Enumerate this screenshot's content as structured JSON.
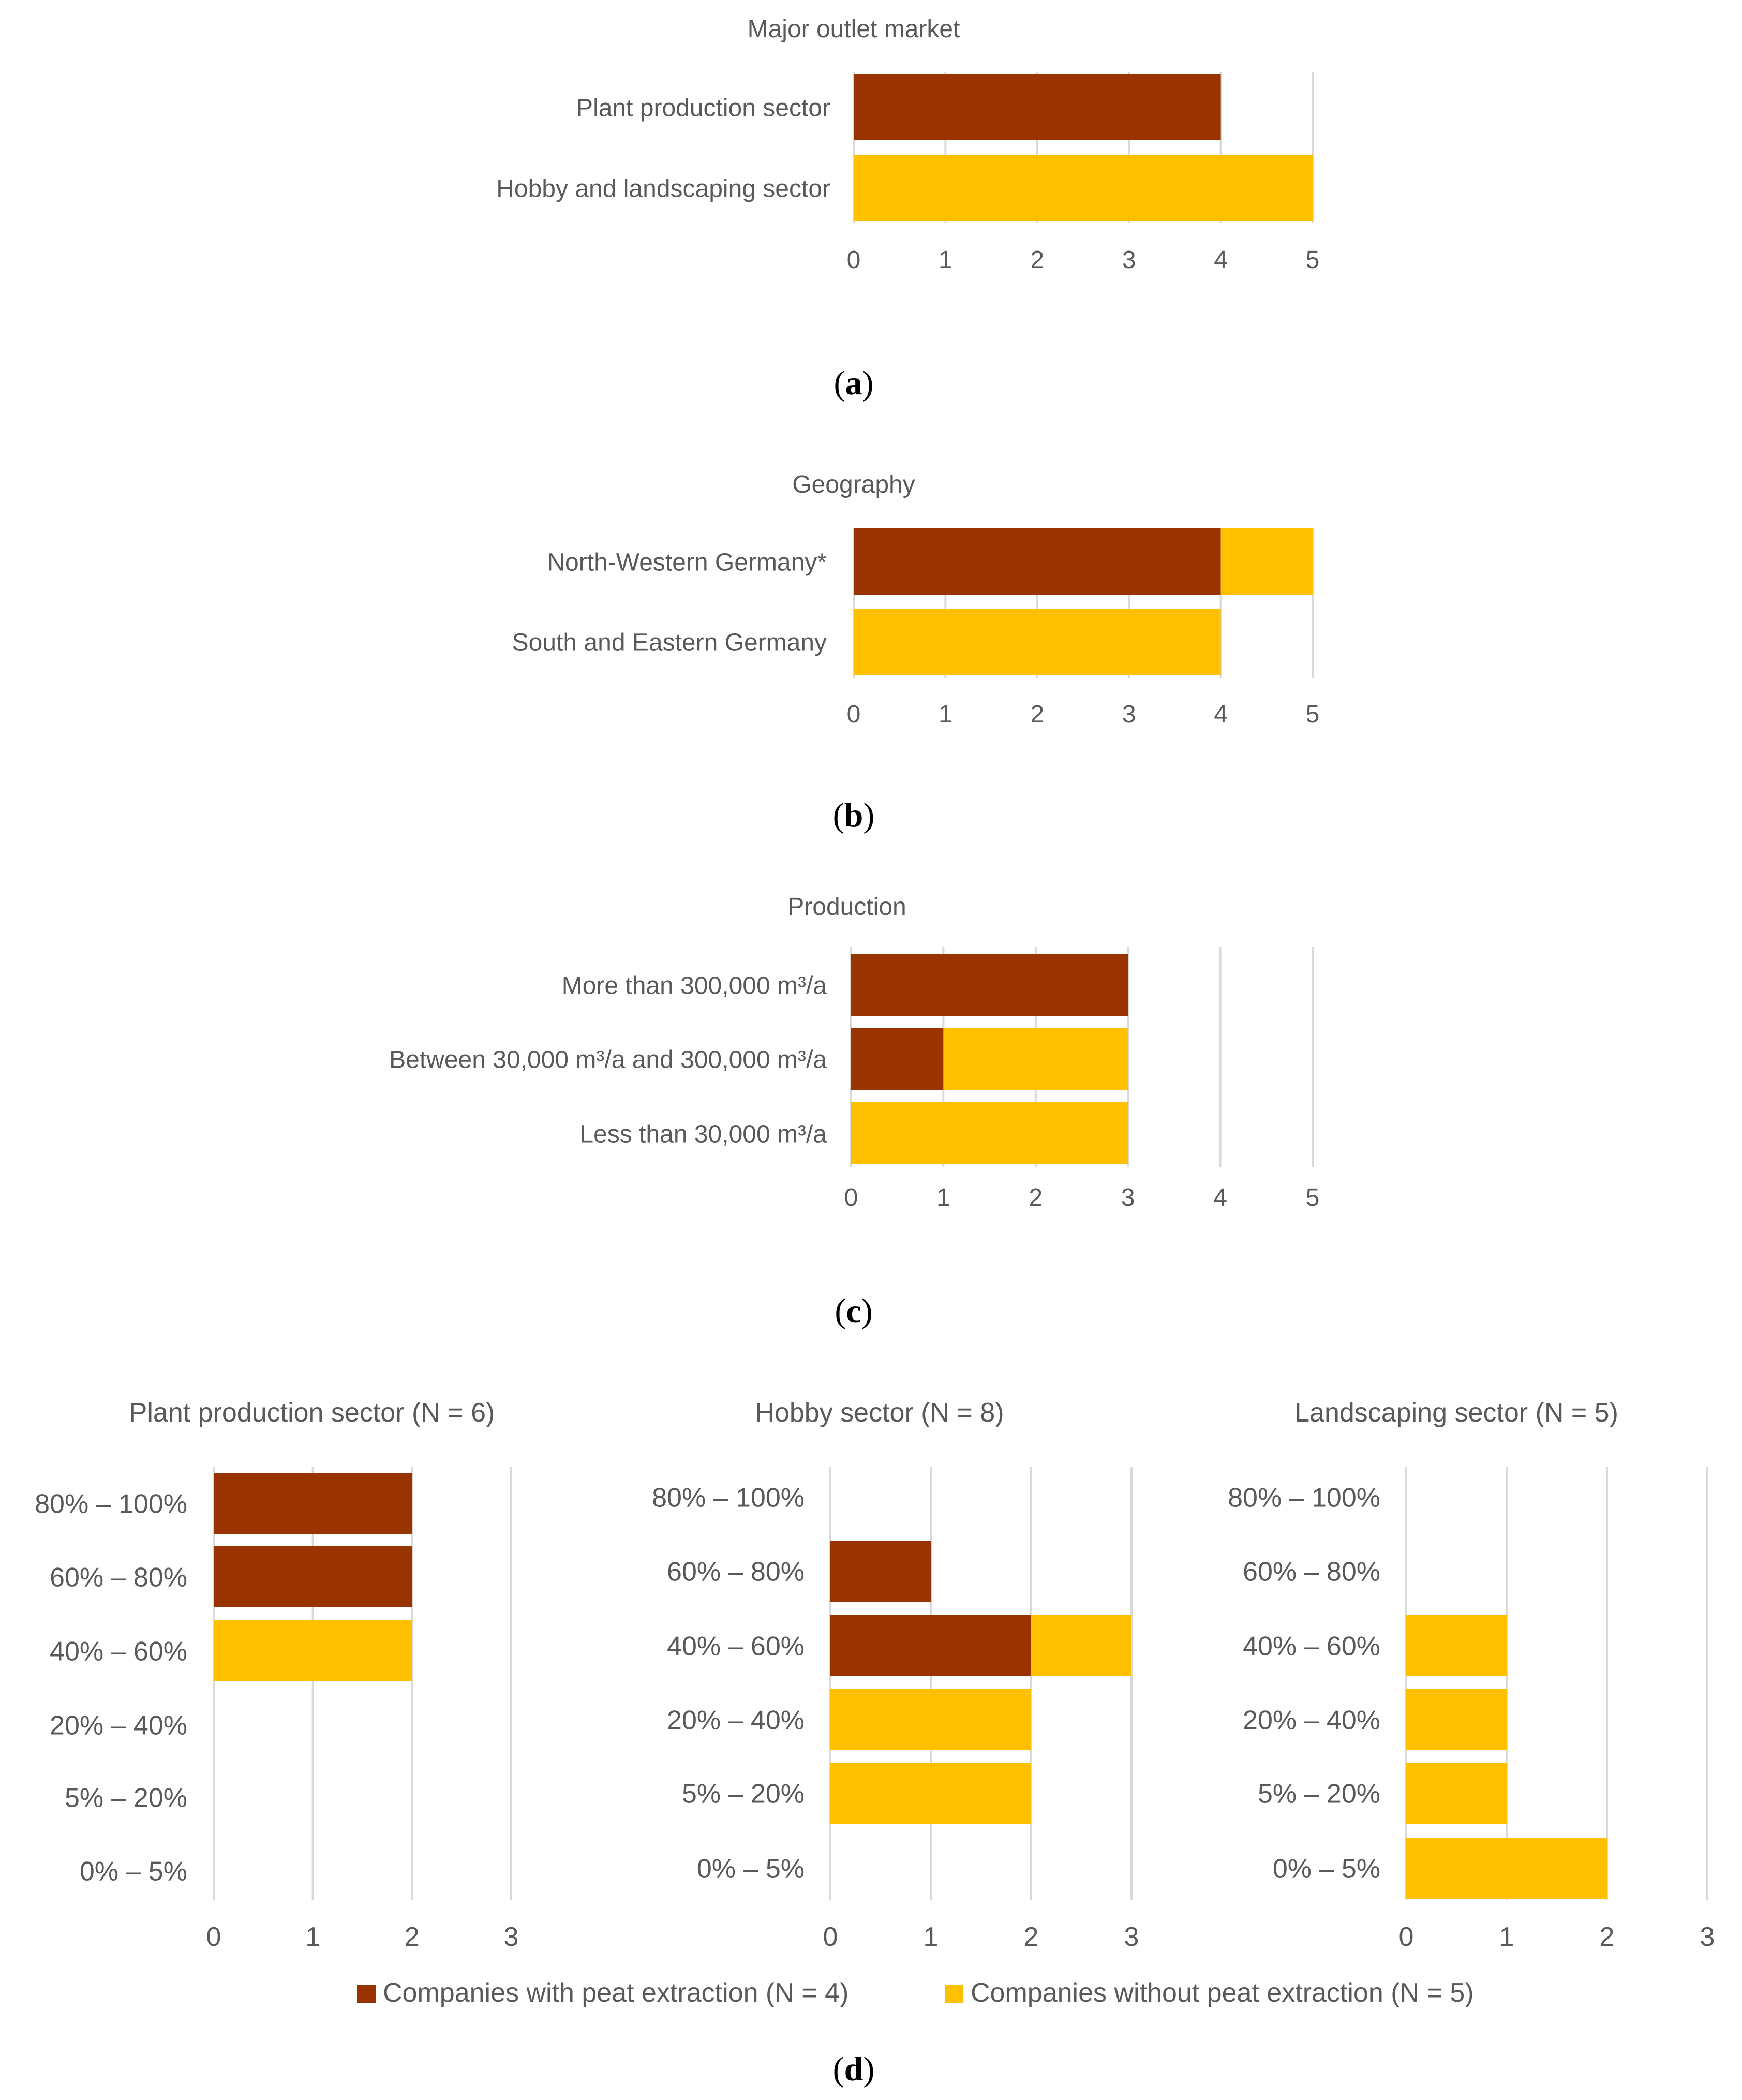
{
  "colors": {
    "with": "#993300",
    "without": "#FFC000",
    "grid": "#D9D9D9",
    "text": "#595959"
  },
  "panel_labels": [
    "a",
    "b",
    "c",
    "d"
  ],
  "legend": {
    "with": "Companies with peat extraction (N = 4)",
    "without": "Companies without peat extraction (N = 5)"
  },
  "chart_data": [
    {
      "type": "bar",
      "orientation": "horizontal",
      "stacked": true,
      "title": "Major outlet market",
      "categories": [
        "Plant production sector",
        "Hobby and landscaping sector"
      ],
      "series": [
        {
          "key": "with",
          "values": [
            4,
            0
          ]
        },
        {
          "key": "without",
          "values": [
            0,
            5
          ]
        }
      ],
      "xlim": [
        0,
        5
      ],
      "xticks": [
        "0",
        "1",
        "2",
        "3",
        "4",
        "5"
      ],
      "grid": true
    },
    {
      "type": "bar",
      "orientation": "horizontal",
      "stacked": true,
      "title": "Geography",
      "categories": [
        "North-Western Germany*",
        "South and Eastern Germany"
      ],
      "series": [
        {
          "key": "with",
          "values": [
            4,
            0
          ]
        },
        {
          "key": "without",
          "values": [
            1,
            4
          ]
        }
      ],
      "xlim": [
        0,
        5
      ],
      "xticks": [
        "0",
        "1",
        "2",
        "3",
        "4",
        "5"
      ],
      "grid": true
    },
    {
      "type": "bar",
      "orientation": "horizontal",
      "stacked": true,
      "title": "Production",
      "categories": [
        "More than 300,000 m³/a",
        "Between 30,000 m³/a and 300,000 m³/a",
        "Less than 30,000 m³/a"
      ],
      "series": [
        {
          "key": "with",
          "values": [
            3,
            1,
            0
          ]
        },
        {
          "key": "without",
          "values": [
            0,
            2,
            3
          ]
        }
      ],
      "xlim": [
        0,
        5
      ],
      "xticks": [
        "0",
        "1",
        "2",
        "3",
        "4",
        "5"
      ],
      "grid": true
    },
    {
      "type": "bar",
      "orientation": "horizontal",
      "stacked": true,
      "title": "Plant production sector (N = 6)",
      "categories": [
        "80% – 100%",
        "60% – 80%",
        "40% – 60%",
        "20% – 40%",
        "5% – 20%",
        "0% – 5%"
      ],
      "series": [
        {
          "key": "with",
          "values": [
            2,
            2,
            0,
            0,
            0,
            0
          ]
        },
        {
          "key": "without",
          "values": [
            0,
            0,
            2,
            0,
            0,
            0
          ]
        }
      ],
      "xlim": [
        0,
        3
      ],
      "xticks": [
        "0",
        "1",
        "2",
        "3"
      ],
      "grid": true
    },
    {
      "type": "bar",
      "orientation": "horizontal",
      "stacked": true,
      "title": "Hobby sector (N = 8)",
      "categories": [
        "80% – 100%",
        "60% – 80%",
        "40% – 60%",
        "20% – 40%",
        "5% – 20%",
        "0% – 5%"
      ],
      "series": [
        {
          "key": "with",
          "values": [
            0,
            1,
            2,
            0,
            0,
            0
          ]
        },
        {
          "key": "without",
          "values": [
            0,
            0,
            1,
            2,
            2,
            0
          ]
        }
      ],
      "xlim": [
        0,
        3
      ],
      "xticks": [
        "0",
        "1",
        "2",
        "3"
      ],
      "grid": true
    },
    {
      "type": "bar",
      "orientation": "horizontal",
      "stacked": true,
      "title": "Landscaping sector (N = 5)",
      "categories": [
        "80% – 100%",
        "60% – 80%",
        "40% – 60%",
        "20% – 40%",
        "5% – 20%",
        "0% – 5%"
      ],
      "series": [
        {
          "key": "with",
          "values": [
            0,
            0,
            0,
            0,
            0,
            0
          ]
        },
        {
          "key": "without",
          "values": [
            0,
            0,
            1,
            1,
            1,
            2
          ]
        }
      ],
      "xlim": [
        0,
        3
      ],
      "xticks": [
        "0",
        "1",
        "2",
        "3"
      ],
      "grid": true
    }
  ]
}
